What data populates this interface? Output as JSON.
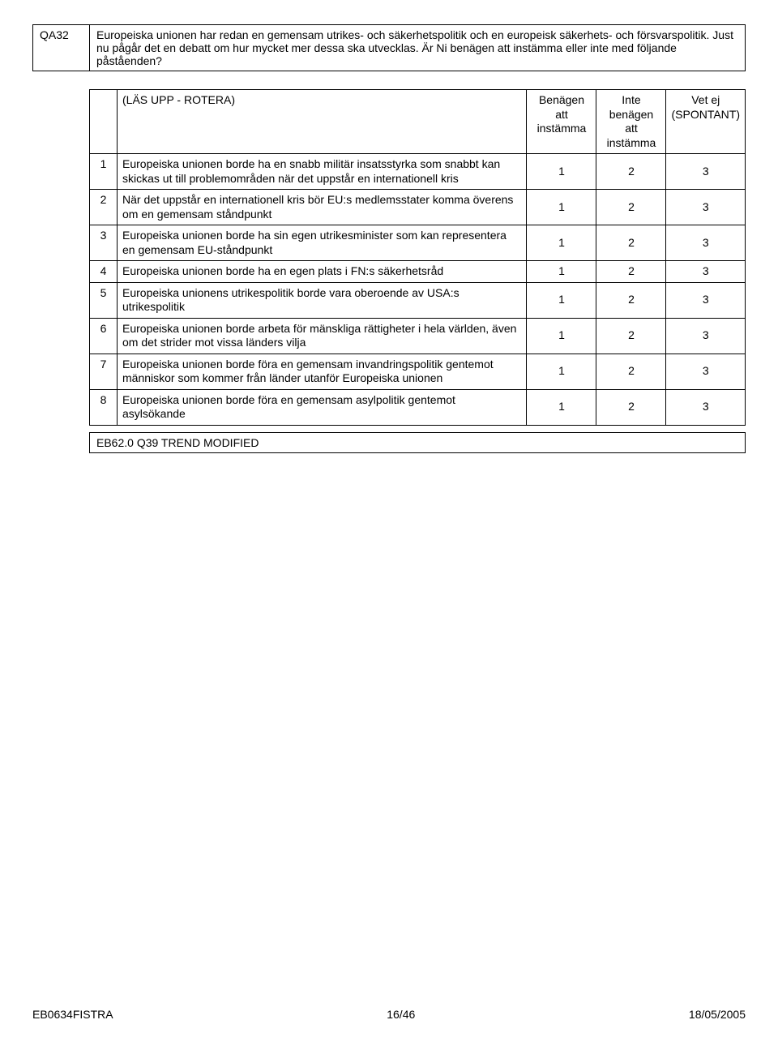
{
  "question": {
    "code": "QA32",
    "text": "Europeiska unionen har redan en gemensam utrikes- och säkerhetspolitik och en europeisk säkerhets- och försvarspolitik. Just nu pågår det en debatt om hur mycket mer dessa ska utvecklas. Är Ni benägen att instämma eller inte med följande påståenden?"
  },
  "table": {
    "header": {
      "rotation_label": "(LÄS UPP - ROTERA)",
      "columns": [
        "Benägen att instämma",
        "Inte benägen att instämma",
        "Vet ej (SPONTANT)"
      ]
    },
    "rows": [
      {
        "n": "1",
        "label": "Europeiska unionen borde ha en snabb militär insatsstyrka som snabbt kan skickas ut till problemområden när det uppstår en internationell kris",
        "v": [
          "1",
          "2",
          "3"
        ]
      },
      {
        "n": "2",
        "label": "När det uppstår en internationell kris bör EU:s medlemsstater komma överens om en gemensam ståndpunkt",
        "v": [
          "1",
          "2",
          "3"
        ]
      },
      {
        "n": "3",
        "label": "Europeiska unionen borde ha sin egen utrikesminister som kan representera en gemensam EU-ståndpunkt",
        "v": [
          "1",
          "2",
          "3"
        ]
      },
      {
        "n": "4",
        "label": "Europeiska unionen borde ha en egen plats i FN:s säkerhetsråd",
        "v": [
          "1",
          "2",
          "3"
        ]
      },
      {
        "n": "5",
        "label": "Europeiska unionens utrikespolitik borde vara oberoende av USA:s utrikespolitik",
        "v": [
          "1",
          "2",
          "3"
        ]
      },
      {
        "n": "6",
        "label": "Europeiska unionen borde arbeta för mänskliga rättigheter i hela världen, även om det strider mot vissa länders vilja",
        "v": [
          "1",
          "2",
          "3"
        ]
      },
      {
        "n": "7",
        "label": "Europeiska unionen borde föra en gemensam invandringspolitik gentemot människor som kommer från länder utanför Europeiska unionen",
        "v": [
          "1",
          "2",
          "3"
        ]
      },
      {
        "n": "8",
        "label": "Europeiska unionen borde föra en gemensam asylpolitik gentemot asylsökande",
        "v": [
          "1",
          "2",
          "3"
        ]
      }
    ]
  },
  "trend_note": "EB62.0 Q39 TREND MODIFIED",
  "footer": {
    "left": "EB0634FISTRA",
    "center": "16/46",
    "right": "18/05/2005"
  }
}
